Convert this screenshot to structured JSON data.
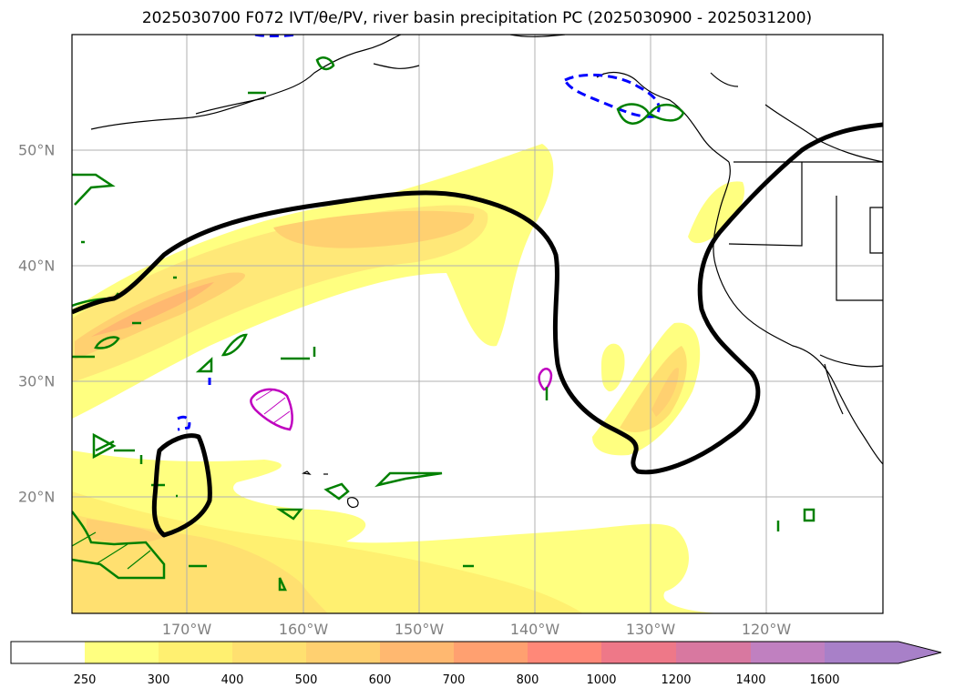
{
  "title": "2025030700 F072 IVT/θe/PV, river basin precipitation PC (2025030900 - 2025031200)",
  "map": {
    "lat_labels": [
      "50°N",
      "40°N",
      "30°N",
      "20°N"
    ],
    "lon_labels": [
      "170°W",
      "160°W",
      "150°W",
      "140°W",
      "130°W",
      "120°W"
    ],
    "colors": {
      "black_contour": "#000000",
      "green_contour": "#008000",
      "magenta_contour": "#bf00bf",
      "blue_dashed": "#0000ff",
      "grid": "#b0b0b0"
    }
  },
  "colorbar": {
    "levels": [
      "250",
      "300",
      "400",
      "500",
      "600",
      "700",
      "800",
      "1000",
      "1200",
      "1400",
      "1600"
    ],
    "colors": [
      "#ffffff",
      "#ffff80",
      "#fff070",
      "#ffe070",
      "#ffd070",
      "#ffb870",
      "#ffa070",
      "#ff8878",
      "#ee7888",
      "#d878a0",
      "#c080c0",
      "#a880c8"
    ]
  }
}
